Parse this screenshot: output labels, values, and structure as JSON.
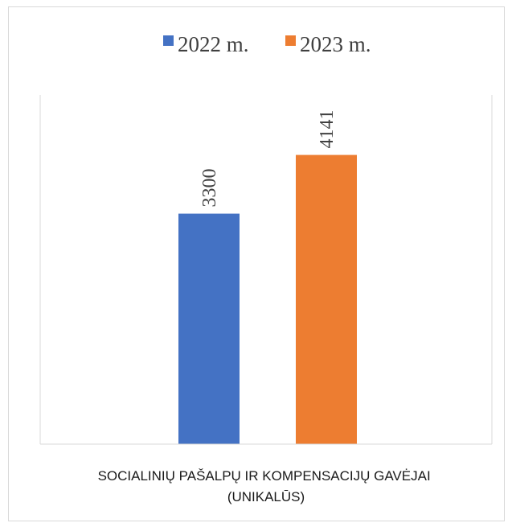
{
  "chart_data": {
    "type": "bar",
    "categories": [
      "SOCIALINIŲ PAŠALPŲ IR KOMPENSACIJŲ GAVĖJAI (UNIKALŪS)"
    ],
    "category_label_lines": [
      "SOCIALINIŲ PAŠALPŲ IR KOMPENSACIJŲ GAVĖJAI",
      "(UNIKALŪS)"
    ],
    "series": [
      {
        "name": "2022 m.",
        "values": [
          3300
        ],
        "color": "#4472c4"
      },
      {
        "name": "2023 m.",
        "values": [
          4141
        ],
        "color": "#ed7d31"
      }
    ],
    "data_labels": [
      "3300",
      "4141"
    ],
    "title": "",
    "xlabel": "",
    "ylabel": "",
    "ylim": [
      0,
      5000
    ],
    "grid": false,
    "legend": "top-center"
  }
}
